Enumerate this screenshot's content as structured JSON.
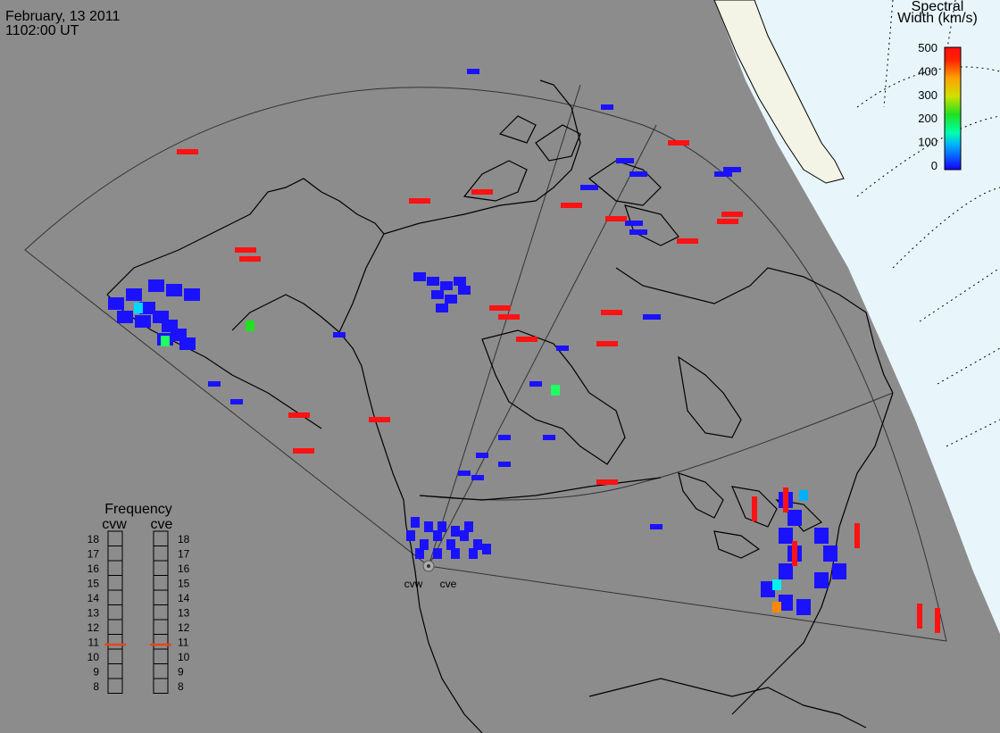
{
  "header": {
    "date": "February, 13 2011",
    "time": "1102:00 UT"
  },
  "colorbar": {
    "title_line1": "Spectral",
    "title_line2": "Width (km/s)",
    "ticks": [
      "500",
      "400",
      "300",
      "200",
      "100",
      "0"
    ]
  },
  "frequency_panel": {
    "title": "Frequency",
    "radars": [
      "cvw",
      "cve"
    ],
    "ticks": [
      "18",
      "17",
      "16",
      "15",
      "14",
      "13",
      "12",
      "11",
      "10",
      "9",
      "8"
    ],
    "cvw_frequency_mhz": 10.8,
    "cve_frequency_mhz": 10.8
  },
  "radar_site": {
    "labels": [
      "cvw",
      "cve"
    ]
  },
  "colors": {
    "background": "#8c8c8c",
    "night_ocean": "#e8f6fc",
    "terminator_band": "#f4f4e6",
    "low_width": "#1a12ff",
    "high_width": "#ff1212",
    "frequency_marker": "#e8461c"
  }
}
